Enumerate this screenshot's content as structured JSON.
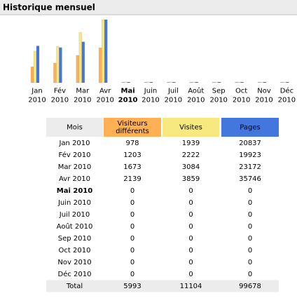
{
  "title": "Historique mensuel",
  "chart_data": {
    "type": "bar",
    "categories": [
      "Jan 2010",
      "Fév 2010",
      "Mar 2010",
      "Avr 2010",
      "Mai 2010",
      "Juin 2010",
      "Juil 2010",
      "Août 2010",
      "Sep 2010",
      "Oct 2010",
      "Nov 2010",
      "Déc 2010"
    ],
    "highlight": 4,
    "series": [
      {
        "name": "Visiteurs différents",
        "color": "#ffb055",
        "values": [
          978,
          1203,
          1673,
          2139,
          0,
          0,
          0,
          0,
          0,
          0,
          0,
          0
        ]
      },
      {
        "name": "Visites",
        "color": "#f8e880",
        "values": [
          1939,
          2222,
          3084,
          3859,
          0,
          0,
          0,
          0,
          0,
          0,
          0,
          0
        ]
      },
      {
        "name": "Pages",
        "color": "#4477dd",
        "axis": "y2",
        "values": [
          20837,
          19923,
          23172,
          35746,
          0,
          0,
          0,
          0,
          0,
          0,
          0,
          0
        ]
      }
    ]
  },
  "table": {
    "header": "Mois",
    "total_label": "Total",
    "totals": [
      5993,
      11104,
      99678
    ]
  }
}
